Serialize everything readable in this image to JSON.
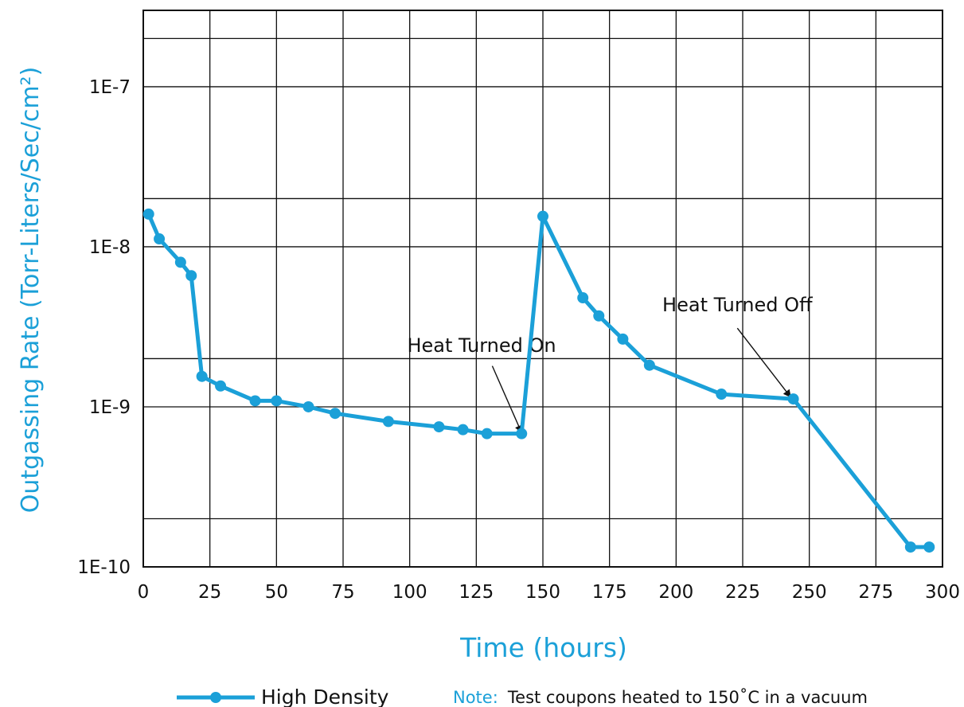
{
  "chart_data": {
    "type": "line",
    "xlabel": "Time (hours)",
    "ylabel": "Outgassing Rate (Torr-Liters/Sec/cm²)",
    "xlim": [
      0,
      300
    ],
    "ylim": [
      1e-10,
      3e-07
    ],
    "y_scale": "log",
    "grid": true,
    "x_ticks": [
      "0",
      "25",
      "50",
      "75",
      "100",
      "125",
      "150",
      "175",
      "200",
      "225",
      "250",
      "275",
      "300"
    ],
    "y_ticks": [
      {
        "value": 1e-10,
        "label": "1E-10"
      },
      {
        "value": 1e-09,
        "label": "1E-9"
      },
      {
        "value": 1e-08,
        "label": "1E-8"
      },
      {
        "value": 1e-07,
        "label": "1E-7"
      }
    ],
    "series": [
      {
        "name": "High Density",
        "color": "#1ba0d8",
        "marker": "circle",
        "points": [
          [
            2,
            1.6e-08
          ],
          [
            6,
            1.12e-08
          ],
          [
            14,
            8e-09
          ],
          [
            18,
            6.6e-09
          ],
          [
            22,
            1.55e-09
          ],
          [
            29,
            1.35e-09
          ],
          [
            42,
            1.09e-09
          ],
          [
            50,
            1.09e-09
          ],
          [
            62,
            1e-09
          ],
          [
            72,
            9.1e-10
          ],
          [
            92,
            8.1e-10
          ],
          [
            111,
            7.5e-10
          ],
          [
            120,
            7.2e-10
          ],
          [
            129,
            6.8e-10
          ],
          [
            142,
            6.8e-10
          ],
          [
            150,
            1.55e-08
          ],
          [
            165,
            4.8e-09
          ],
          [
            171,
            3.7e-09
          ],
          [
            180,
            2.65e-09
          ],
          [
            190,
            1.82e-09
          ],
          [
            217,
            1.2e-09
          ],
          [
            244,
            1.12e-09
          ],
          [
            288,
            1.33e-10
          ],
          [
            295,
            1.33e-10
          ]
        ]
      }
    ],
    "annotations": [
      {
        "text": "Heat Turned On",
        "text_at": [
          127,
          2.2e-09
        ],
        "arrow_from": [
          131,
          1.8e-09
        ],
        "arrow_to": [
          142,
          6.9e-10
        ]
      },
      {
        "text": "Heat Turned Off",
        "text_at": [
          223,
          3.95e-09
        ],
        "arrow_from": [
          223,
          3.1e-09
        ],
        "arrow_to": [
          243,
          1.15e-09
        ]
      }
    ],
    "legend": {
      "position": "bottom-left",
      "entries": [
        "High Density"
      ]
    },
    "note": {
      "label": "Note:",
      "text": "Test coupons heated to 150˚C in a vacuum"
    }
  }
}
